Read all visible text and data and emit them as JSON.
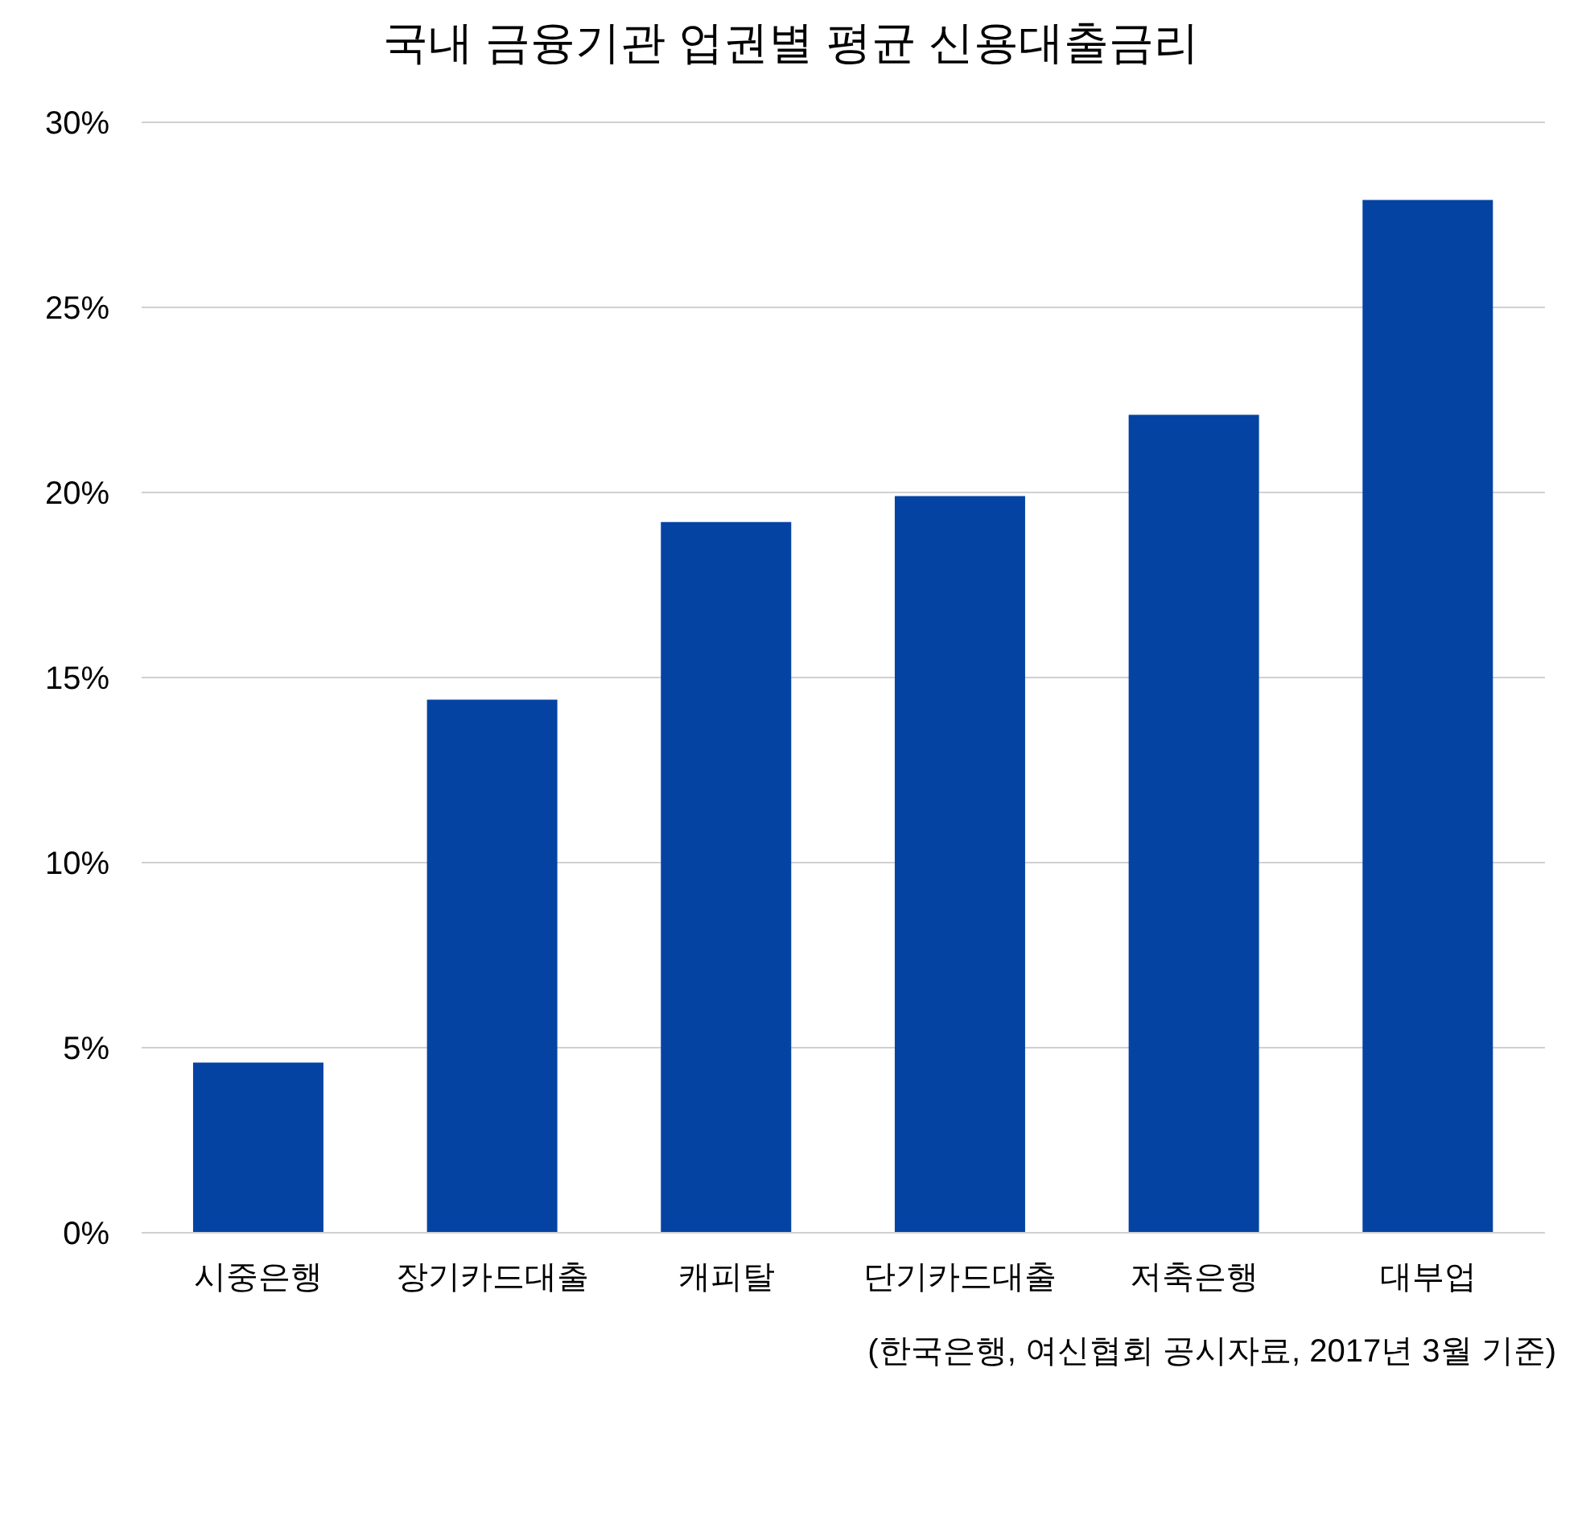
{
  "chart_data": {
    "type": "bar",
    "title": "국내 금융기관 업권별 평균 신용대출금리",
    "categories": [
      "시중은행",
      "장기카드대출",
      "캐피탈",
      "단기카드대출",
      "저축은행",
      "대부업"
    ],
    "values": [
      4.6,
      14.4,
      19.2,
      19.9,
      22.1,
      27.9
    ],
    "color": "#0543a3",
    "ylim": [
      0,
      30
    ],
    "yticks": [
      {
        "value": 0,
        "label": "0%"
      },
      {
        "value": 5,
        "label": "5%"
      },
      {
        "value": 10,
        "label": "10%"
      },
      {
        "value": 15,
        "label": "15%"
      },
      {
        "value": 20,
        "label": "20%"
      },
      {
        "value": 25,
        "label": "25%"
      },
      {
        "value": 30,
        "label": "30%"
      }
    ],
    "grid": "y",
    "legend": false,
    "annotations": [
      "(한국은행, 여신협회 공시자료, 2017년 3월 기준)"
    ]
  }
}
